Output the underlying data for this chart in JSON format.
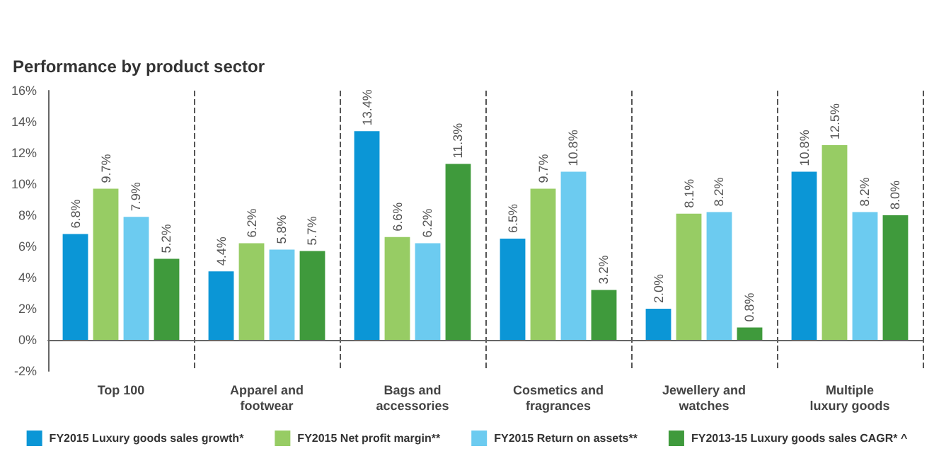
{
  "chart_data": {
    "type": "bar",
    "title": "Performance by product sector",
    "categories": [
      "Top 100",
      "Apparel and\nfootwear",
      "Bags and\naccessories",
      "Cosmetics and\nfragrances",
      "Jewellery and\nwatches",
      "Multiple\nluxury goods"
    ],
    "series": [
      {
        "name": "FY2015 Luxury goods sales growth*",
        "color": "#0b96d6",
        "values": [
          6.8,
          4.4,
          13.4,
          6.5,
          2.0,
          10.8
        ],
        "value_labels": [
          "6.8%",
          "4.4%",
          "13.4%",
          "6.5%",
          "2.0%",
          "10.8%"
        ]
      },
      {
        "name": "FY2015 Net profit margin**",
        "color": "#97cc64",
        "values": [
          9.7,
          6.2,
          6.6,
          9.7,
          8.1,
          12.5
        ],
        "value_labels": [
          "9.7%",
          "6.2%",
          "6.6%",
          "9.7%",
          "8.1%",
          "12.5%"
        ]
      },
      {
        "name": "FY2015 Return on assets**",
        "color": "#6ccbf0",
        "values": [
          7.9,
          5.8,
          6.2,
          10.8,
          8.2,
          8.2
        ],
        "value_labels": [
          "7.9%",
          "5.8%",
          "6.2%",
          "10.8%",
          "8.2%",
          "8.2%"
        ]
      },
      {
        "name": "FY2013-15 Luxury goods sales CAGR* ^",
        "color": "#3f9a3c",
        "values": [
          5.2,
          5.7,
          11.3,
          3.2,
          0.8,
          8.0
        ],
        "value_labels": [
          "5.2%",
          "5.7%",
          "11.3%",
          "3.2%",
          "0.8%",
          "8.0%"
        ]
      }
    ],
    "ylim": [
      -2,
      16
    ],
    "yticks": [
      {
        "value": -2,
        "label": "-2%"
      },
      {
        "value": 0,
        "label": "0%"
      },
      {
        "value": 2,
        "label": "2%"
      },
      {
        "value": 4,
        "label": "4%"
      },
      {
        "value": 6,
        "label": "6%"
      },
      {
        "value": 8,
        "label": "8%"
      },
      {
        "value": 10,
        "label": "10%"
      },
      {
        "value": 12,
        "label": "12%"
      },
      {
        "value": 14,
        "label": "14%"
      },
      {
        "value": 16,
        "label": "16%"
      }
    ],
    "grid": "x",
    "legend": "bottom"
  }
}
